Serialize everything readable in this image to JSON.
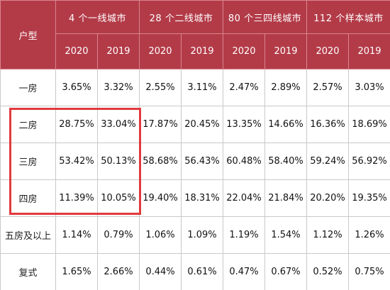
{
  "table": {
    "type_header": "户型",
    "groups": [
      "4 个一线城市",
      "28 个二线城市",
      "80 个三四线城市",
      "112 个样本城市"
    ],
    "years": [
      "2020",
      "2019"
    ],
    "rows": [
      {
        "type": "一房",
        "values": [
          "3.65%",
          "3.32%",
          "2.55%",
          "3.11%",
          "2.47%",
          "2.89%",
          "2.57%",
          "3.03%"
        ]
      },
      {
        "type": "二房",
        "values": [
          "28.75%",
          "33.04%",
          "17.87%",
          "20.45%",
          "13.35%",
          "14.66%",
          "16.36%",
          "18.69%"
        ]
      },
      {
        "type": "三房",
        "values": [
          "53.42%",
          "50.13%",
          "58.68%",
          "56.43%",
          "60.48%",
          "58.40%",
          "59.24%",
          "56.92%"
        ]
      },
      {
        "type": "四房",
        "values": [
          "11.39%",
          "10.05%",
          "19.40%",
          "18.31%",
          "22.04%",
          "21.84%",
          "20.20%",
          "19.35%"
        ]
      },
      {
        "type": "五房及以上",
        "values": [
          "1.14%",
          "0.79%",
          "1.06%",
          "1.09%",
          "1.19%",
          "1.54%",
          "1.12%",
          "1.26%"
        ]
      },
      {
        "type": "复式",
        "values": [
          "1.65%",
          "2.66%",
          "0.44%",
          "0.61%",
          "0.47%",
          "0.67%",
          "0.52%",
          "0.75%"
        ]
      }
    ]
  },
  "colors": {
    "header_bg": "#b33b48",
    "header_text": "#ffffff",
    "highlight_border": "#e03a3e"
  }
}
